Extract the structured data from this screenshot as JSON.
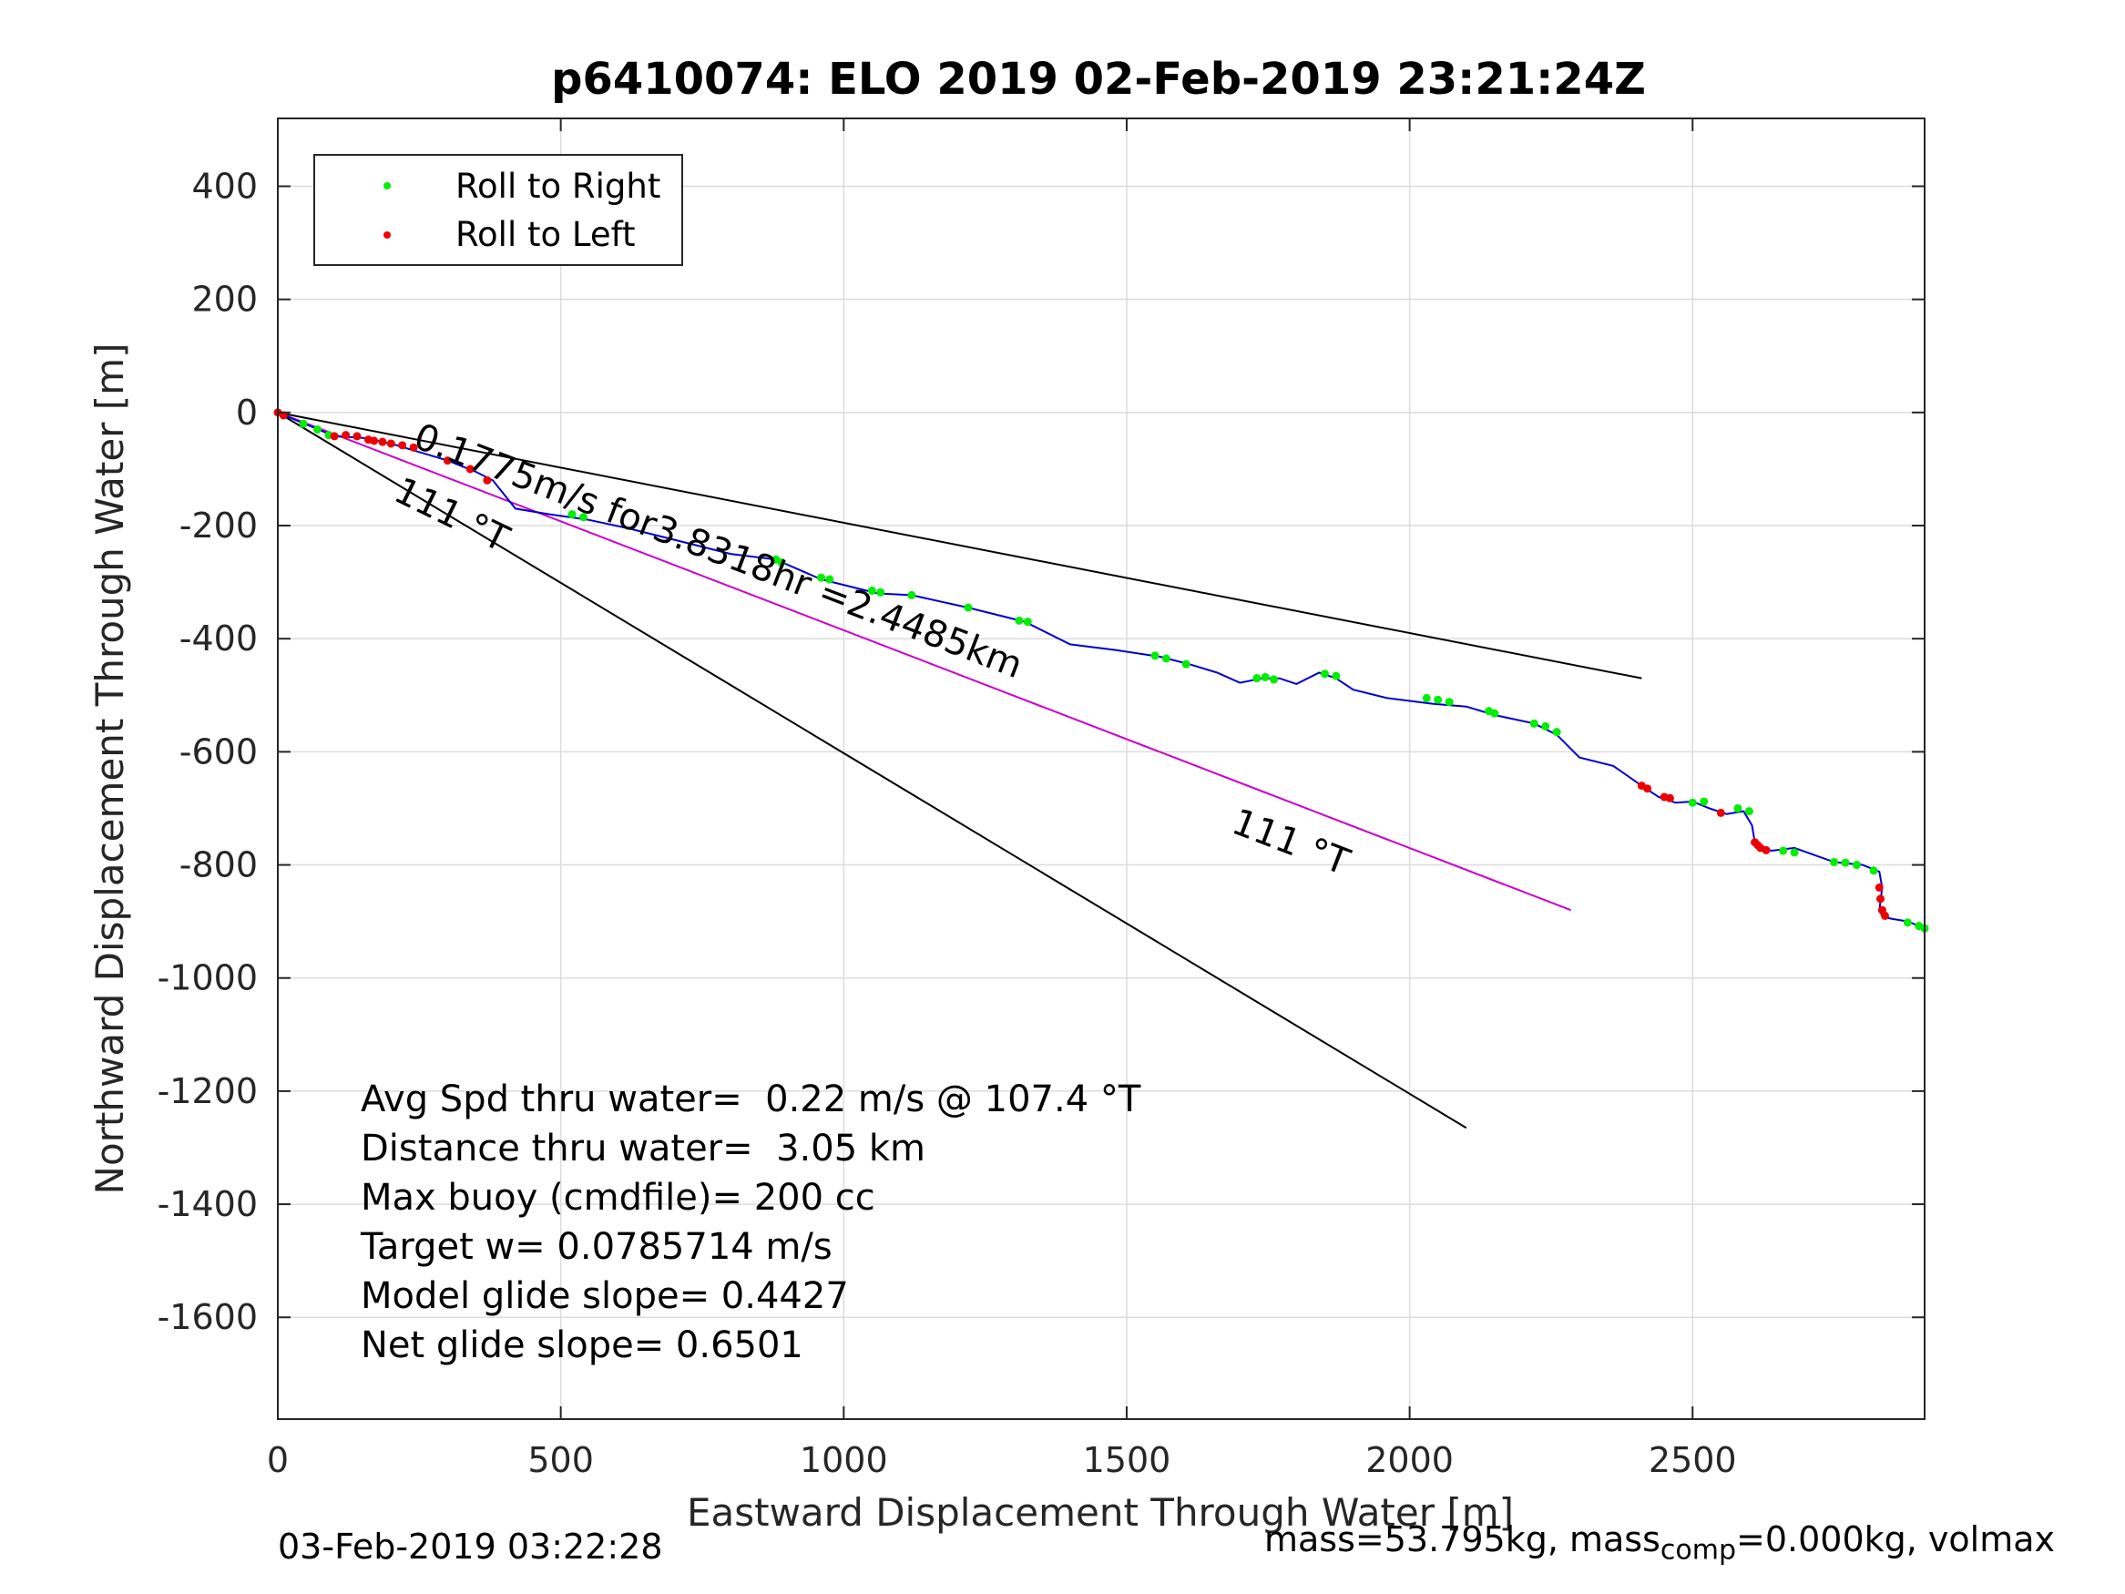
{
  "chart_data": {
    "type": "scatter",
    "title": "p6410074: ELO 2019 02-Feb-2019 23:21:24Z",
    "xlabel": "Eastward Displacement Through Water [m]",
    "ylabel": "Northward Displacement Through Water [m]",
    "xlim": [
      0,
      2910
    ],
    "ylim": [
      -1780,
      520
    ],
    "xticks": [
      0,
      500,
      1000,
      1500,
      2000,
      2500
    ],
    "yticks": [
      400,
      200,
      0,
      -200,
      -400,
      -600,
      -800,
      -1000,
      -1200,
      -1400,
      -1600
    ],
    "grid": true,
    "legend_position": "top-left",
    "legend": [
      {
        "label": "Roll to Right",
        "color": "#00ee00"
      },
      {
        "label": "Roll to Left",
        "color": "#ee0000"
      }
    ],
    "track": {
      "color": "#0000cc",
      "x": [
        0,
        60,
        100,
        150,
        200,
        250,
        300,
        350,
        380,
        420,
        480,
        550,
        620,
        700,
        800,
        880,
        960,
        1060,
        1120,
        1220,
        1320,
        1400,
        1480,
        1560,
        1610,
        1660,
        1700,
        1740,
        1770,
        1800,
        1840,
        1870,
        1900,
        1960,
        2040,
        2100,
        2150,
        2220,
        2260,
        2300,
        2360,
        2410,
        2440,
        2470,
        2500,
        2530,
        2560,
        2590,
        2605,
        2610,
        2620,
        2640,
        2680,
        2750,
        2800,
        2830,
        2835,
        2830,
        2835,
        2850,
        2880,
        2910
      ],
      "y": [
        0,
        -25,
        -42,
        -45,
        -55,
        -70,
        -85,
        -105,
        -120,
        -170,
        -180,
        -190,
        -205,
        -225,
        -250,
        -260,
        -295,
        -320,
        -323,
        -345,
        -370,
        -410,
        -420,
        -432,
        -445,
        -460,
        -478,
        -470,
        -470,
        -480,
        -460,
        -470,
        -490,
        -505,
        -515,
        -520,
        -535,
        -550,
        -570,
        -610,
        -625,
        -660,
        -680,
        -690,
        -688,
        -700,
        -710,
        -705,
        -730,
        -760,
        -770,
        -775,
        -770,
        -795,
        -800,
        -812,
        -840,
        -880,
        -890,
        -895,
        -900,
        -912
      ]
    },
    "roll_right": {
      "color": "#00ee00",
      "x": [
        45,
        70,
        90,
        520,
        540,
        880,
        890,
        960,
        975,
        1050,
        1065,
        1120,
        1220,
        1310,
        1325,
        1550,
        1570,
        1605,
        1730,
        1745,
        1760,
        1850,
        1870,
        2030,
        2050,
        2070,
        2140,
        2150,
        2220,
        2240,
        2260,
        2500,
        2520,
        2580,
        2600,
        2660,
        2680,
        2750,
        2770,
        2790,
        2820,
        2880,
        2900,
        2910
      ],
      "y": [
        -20,
        -30,
        -40,
        -180,
        -185,
        -260,
        -265,
        -292,
        -295,
        -315,
        -318,
        -323,
        -345,
        -368,
        -370,
        -430,
        -435,
        -445,
        -470,
        -468,
        -472,
        -462,
        -466,
        -505,
        -508,
        -512,
        -528,
        -532,
        -550,
        -555,
        -565,
        -690,
        -688,
        -700,
        -705,
        -775,
        -778,
        -795,
        -796,
        -800,
        -810,
        -902,
        -908,
        -912
      ]
    },
    "roll_left": {
      "color": "#ee0000",
      "x": [
        0,
        10,
        100,
        120,
        140,
        160,
        170,
        185,
        200,
        220,
        240,
        300,
        340,
        370,
        2410,
        2420,
        2450,
        2460,
        2550,
        2610,
        2615,
        2620,
        2630,
        2830,
        2832,
        2835,
        2840
      ],
      "y": [
        0,
        -5,
        -42,
        -40,
        -42,
        -48,
        -50,
        -52,
        -55,
        -58,
        -62,
        -85,
        -100,
        -120,
        -660,
        -665,
        -680,
        -682,
        -708,
        -760,
        -765,
        -770,
        -774,
        -840,
        -860,
        -880,
        -890
      ]
    },
    "reference_lines": [
      {
        "x": [
          0,
          2410
        ],
        "y": [
          0,
          -470
        ],
        "color": "#000000"
      },
      {
        "x": [
          0,
          2100
        ],
        "y": [
          0,
          -1265
        ],
        "color": "#000000"
      },
      {
        "x": [
          0,
          2285
        ],
        "y": [
          0,
          -880
        ],
        "color": "#cc00cc"
      }
    ],
    "labels": {
      "heading_top": "111 °T",
      "heading_right": "111 °T",
      "speed": "0.1775m/s for3.8318hr =2.4485km"
    },
    "stats": [
      "Avg Spd thru water=  0.22 m/s @ 107.4 °T",
      "Distance thru water=  3.05 km",
      "Max buoy (cmdfile)= 200 cc",
      "Target w= 0.0785714 m/s",
      "Model glide slope= 0.4427",
      "Net glide slope= 0.6501"
    ]
  },
  "footer": {
    "timestamp": "03-Feb-2019 03:22:28",
    "mass_prefix": "mass=53.795kg, mass",
    "mass_sub": "comp",
    "mass_suffix": "=0.000kg, volmax"
  }
}
